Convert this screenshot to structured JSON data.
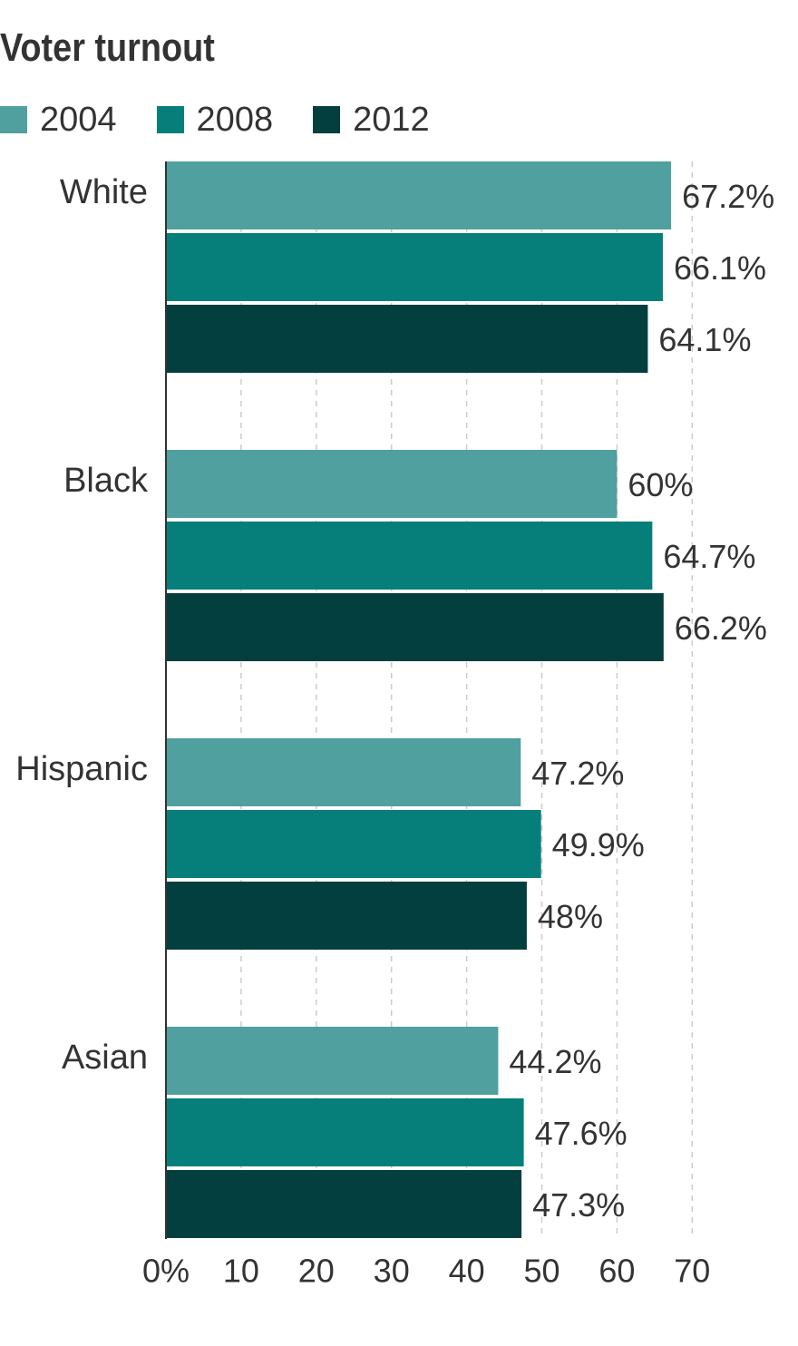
{
  "chart_data": {
    "type": "bar",
    "orientation": "horizontal",
    "title": "Voter turnout",
    "categories": [
      "White",
      "Black",
      "Hispanic",
      "Asian"
    ],
    "series": [
      {
        "name": "2004",
        "color": "#4fa09f",
        "values": [
          67.2,
          60,
          47.2,
          44.2
        ],
        "labels": [
          "67.2%",
          "60%",
          "47.2%",
          "44.2%"
        ]
      },
      {
        "name": "2008",
        "color": "#067f7b",
        "values": [
          66.1,
          64.7,
          49.9,
          47.6
        ],
        "labels": [
          "66.1%",
          "64.7%",
          "49.9%",
          "47.6%"
        ]
      },
      {
        "name": "2012",
        "color": "#033f3e",
        "values": [
          64.1,
          66.2,
          48,
          47.3
        ],
        "labels": [
          "64.1%",
          "66.2%",
          "48%",
          "47.3%"
        ]
      }
    ],
    "xlim": [
      0,
      70
    ],
    "xticks": [
      "0%",
      "10",
      "20",
      "30",
      "40",
      "50",
      "60",
      "70"
    ],
    "grid": true,
    "legend": "top-left"
  }
}
